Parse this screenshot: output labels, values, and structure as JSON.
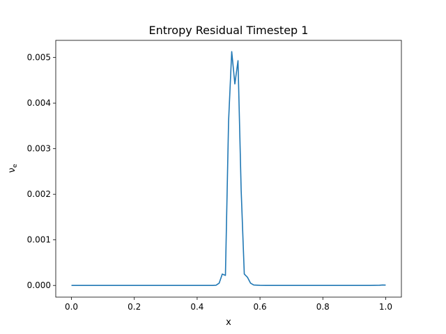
{
  "chart_data": {
    "type": "line",
    "title": "Entropy Residual Timestep 1",
    "xlabel": "x",
    "ylabel_base": "ν",
    "ylabel_sub": "e",
    "xlim": [
      -0.05,
      1.05
    ],
    "ylim": [
      -0.000256,
      0.005376
    ],
    "xticks": [
      {
        "value": 0.0,
        "label": "0.0"
      },
      {
        "value": 0.2,
        "label": "0.2"
      },
      {
        "value": 0.4,
        "label": "0.4"
      },
      {
        "value": 0.6,
        "label": "0.6"
      },
      {
        "value": 0.8,
        "label": "0.8"
      },
      {
        "value": 1.0,
        "label": "1.0"
      }
    ],
    "yticks": [
      {
        "value": 0.0,
        "label": "0.000"
      },
      {
        "value": 0.001,
        "label": "0.001"
      },
      {
        "value": 0.002,
        "label": "0.002"
      },
      {
        "value": 0.003,
        "label": "0.003"
      },
      {
        "value": 0.004,
        "label": "0.004"
      },
      {
        "value": 0.005,
        "label": "0.005"
      }
    ],
    "grid": false,
    "series": [
      {
        "color": "#1f77b4",
        "points": [
          [
            0.0,
            0.0
          ],
          [
            0.1,
            0.0
          ],
          [
            0.2,
            0.0
          ],
          [
            0.3,
            0.0
          ],
          [
            0.4,
            0.0
          ],
          [
            0.45,
            0.0
          ],
          [
            0.46,
            5e-06
          ],
          [
            0.47,
            5e-05
          ],
          [
            0.48,
            0.00025
          ],
          [
            0.49,
            0.00022
          ],
          [
            0.5,
            0.0036
          ],
          [
            0.51,
            0.00513
          ],
          [
            0.52,
            0.00442
          ],
          [
            0.53,
            0.00493
          ],
          [
            0.54,
            0.0021
          ],
          [
            0.55,
            0.00025
          ],
          [
            0.56,
            0.00018
          ],
          [
            0.57,
            5e-05
          ],
          [
            0.58,
            1e-05
          ],
          [
            0.6,
            2e-06
          ],
          [
            0.62,
            0.0
          ],
          [
            0.7,
            0.0
          ],
          [
            0.8,
            0.0
          ],
          [
            0.9,
            0.0
          ],
          [
            0.95,
            0.0
          ],
          [
            0.98,
            5e-06
          ],
          [
            0.99,
            1e-05
          ],
          [
            1.0,
            8e-06
          ]
        ]
      }
    ]
  }
}
